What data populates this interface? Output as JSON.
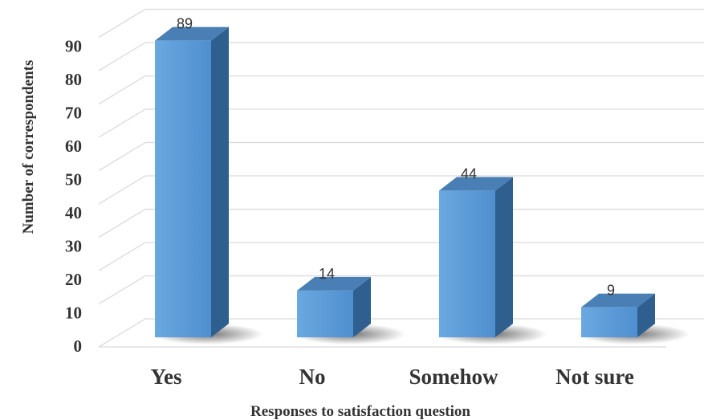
{
  "chart_data": {
    "type": "bar",
    "title": "",
    "xlabel": "Responses to satisfaction question",
    "ylabel": "Number of correspondents",
    "categories": [
      "Yes",
      "No",
      "Somehow",
      "Not sure"
    ],
    "values": [
      89,
      14,
      44,
      9
    ],
    "data_labels": [
      "89",
      "14",
      "44",
      "9"
    ],
    "ylim": [
      0,
      90
    ],
    "yticks": [
      "0",
      "10",
      "20",
      "30",
      "40",
      "50",
      "60",
      "70",
      "80",
      "90"
    ],
    "grid": true,
    "legend": "none",
    "style": "3d-column",
    "colors": {
      "bar_front": "#5b9bd5",
      "bar_side": "#2f5f8f",
      "bar_top": "#4a7fb5",
      "grid": "#d9d9d9"
    }
  }
}
